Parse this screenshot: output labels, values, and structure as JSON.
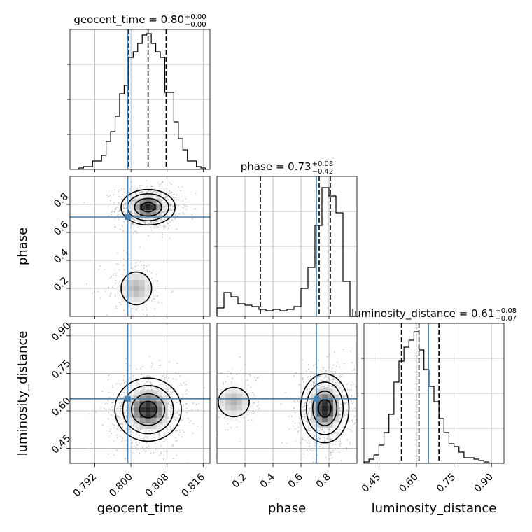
{
  "chart_data": {
    "type": "corner",
    "parameters": [
      "geocent_time",
      "phase",
      "luminosity_distance"
    ],
    "truths": {
      "geocent_time": 0.7993,
      "phase": 0.71,
      "luminosity_distance": 0.648
    },
    "truth_color": "#4682b4",
    "contour_color": "#000000",
    "grid": true,
    "ranges": {
      "geocent_time": [
        0.7865,
        0.8175
      ],
      "phase": [
        0.0,
        1.0
      ],
      "luminosity_distance": [
        0.39,
        0.95
      ]
    },
    "ticks": {
      "geocent_time": [
        "0.792",
        "0.800",
        "0.808",
        "0.816"
      ],
      "phase": [
        "0.2",
        "0.4",
        "0.6",
        "0.8"
      ],
      "luminosity_distance": [
        "0.45",
        "0.60",
        "0.75",
        "0.90"
      ]
    },
    "axis_labels": {
      "geocent_time": "geocent_time",
      "phase": "phase",
      "luminosity_distance": "luminosity_distance"
    },
    "titles": [
      {
        "param": "geocent_time",
        "prefix": "geocent_time = 0.80",
        "sup": "+0.00",
        "sub": "−0.00"
      },
      {
        "param": "phase",
        "prefix": "phase = 0.73",
        "sup": "+0.08",
        "sub": "−0.42"
      },
      {
        "param": "luminosity_distance",
        "prefix": "luminosity_distance = 0.61",
        "sup": "+0.08",
        "sub": "−0.07"
      }
    ],
    "quantiles": {
      "geocent_time": [
        0.7995,
        0.8038,
        0.8078
      ],
      "phase": [
        0.31,
        0.73,
        0.81
      ],
      "luminosity_distance": [
        0.54,
        0.61,
        0.69
      ]
    },
    "histograms": {
      "geocent_time": {
        "edges": [
          0.7885,
          0.7895,
          0.7905,
          0.7915,
          0.7925,
          0.7935,
          0.7945,
          0.7955,
          0.7965,
          0.7975,
          0.7985,
          0.7995,
          0.8005,
          0.8015,
          0.8025,
          0.8035,
          0.8045,
          0.8055,
          0.8065,
          0.8075,
          0.8085,
          0.8095,
          0.8105,
          0.8115,
          0.8125,
          0.8135,
          0.8145,
          0.8155,
          0.8165
        ],
        "counts": [
          0.01,
          0.02,
          0.02,
          0.06,
          0.06,
          0.1,
          0.2,
          0.27,
          0.38,
          0.54,
          0.6,
          0.8,
          0.84,
          0.9,
          0.96,
          0.97,
          0.9,
          0.84,
          0.8,
          0.55,
          0.55,
          0.34,
          0.22,
          0.14,
          0.06,
          0.06,
          0.02,
          0.01
        ]
      },
      "phase": {
        "edges": [
          0.0,
          0.05,
          0.1,
          0.15,
          0.2,
          0.25,
          0.3,
          0.35,
          0.4,
          0.45,
          0.5,
          0.55,
          0.6,
          0.65,
          0.7,
          0.75,
          0.8,
          0.85,
          0.9,
          0.95,
          1.0
        ],
        "counts": [
          0.06,
          0.17,
          0.14,
          0.09,
          0.08,
          0.07,
          0.05,
          0.04,
          0.05,
          0.04,
          0.05,
          0.07,
          0.2,
          0.35,
          0.65,
          0.92,
          0.86,
          0.74,
          0.25,
          0.0
        ]
      },
      "luminosity_distance": {
        "edges": [
          0.39,
          0.41,
          0.43,
          0.45,
          0.47,
          0.49,
          0.51,
          0.53,
          0.55,
          0.57,
          0.59,
          0.61,
          0.63,
          0.65,
          0.67,
          0.69,
          0.71,
          0.73,
          0.75,
          0.77,
          0.79,
          0.81,
          0.83,
          0.85,
          0.87,
          0.89
        ],
        "counts": [
          0.01,
          0.03,
          0.06,
          0.13,
          0.22,
          0.35,
          0.58,
          0.73,
          0.83,
          0.88,
          0.94,
          0.81,
          0.67,
          0.55,
          0.44,
          0.32,
          0.22,
          0.14,
          0.12,
          0.08,
          0.04,
          0.04,
          0.03,
          0.02,
          0.01
        ]
      }
    },
    "pairs": [
      {
        "x": "geocent_time",
        "y": "phase",
        "blobs": [
          [
            0.8038,
            0.78,
            0.0026,
            0.055,
            1.0
          ],
          [
            0.8012,
            0.2,
            0.0026,
            0.09,
            0.22
          ]
        ]
      },
      {
        "x": "geocent_time",
        "y": "luminosity_distance",
        "blobs": [
          [
            0.8038,
            0.605,
            0.0032,
            0.055,
            1.0
          ]
        ]
      },
      {
        "x": "phase",
        "y": "luminosity_distance",
        "blobs": [
          [
            0.77,
            0.61,
            0.075,
            0.06,
            1.0
          ],
          [
            0.12,
            0.635,
            0.085,
            0.045,
            0.18
          ]
        ]
      }
    ]
  }
}
